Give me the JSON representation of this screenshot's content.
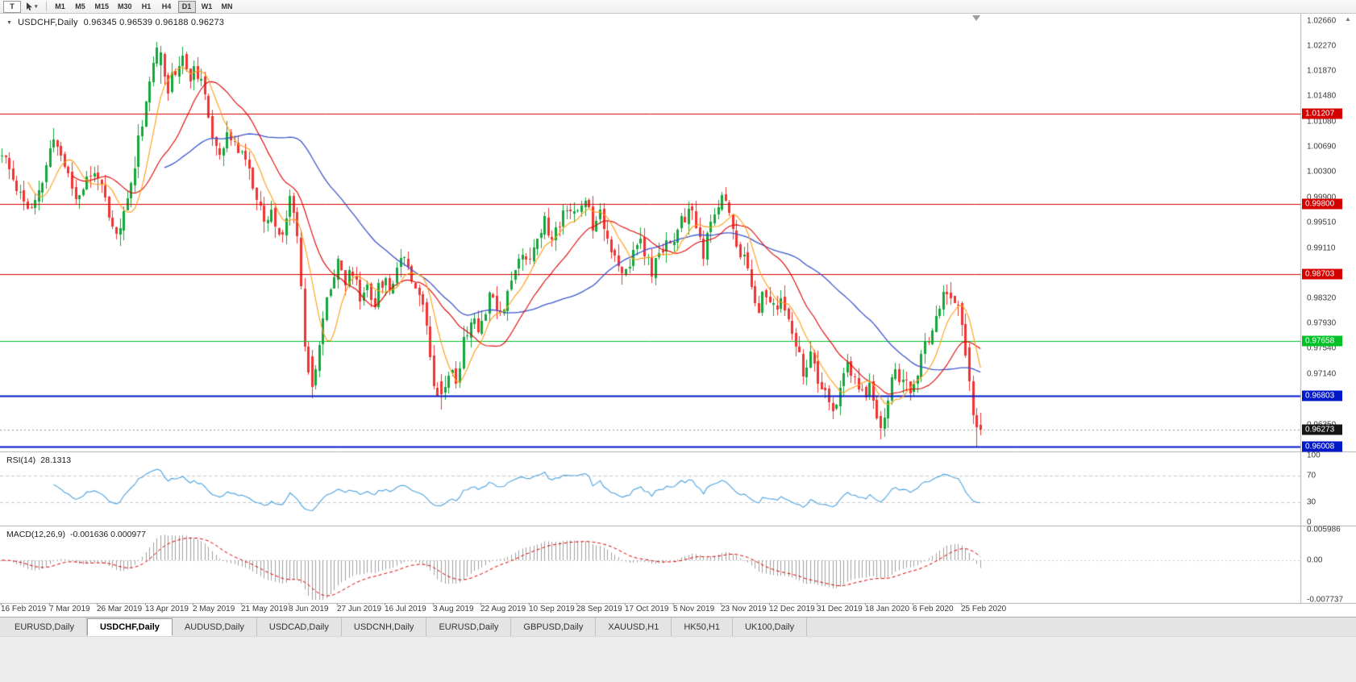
{
  "toolbar": {
    "tool_button_label": "T",
    "timeframes": [
      "M1",
      "M5",
      "M15",
      "M30",
      "H1",
      "H4",
      "D1",
      "W1",
      "MN"
    ],
    "active_timeframe": "D1"
  },
  "chart": {
    "title_symbol": "USDCHF,Daily",
    "title_ohlc": "0.96345 0.96539 0.96188 0.96273"
  },
  "chart_data": {
    "type": "candlestick",
    "symbol": "USDCHF",
    "timeframe": "Daily",
    "bars": 266,
    "current_ohlc": {
      "open": 0.96345,
      "high": 0.96539,
      "low": 0.96188,
      "close": 0.96273
    },
    "price_range": {
      "max": 1.0277,
      "min": 0.9593
    },
    "y_axis_labels": [
      "1.02660",
      "1.02270",
      "1.01870",
      "1.01480",
      "1.01080",
      "1.00690",
      "1.00300",
      "0.99900",
      "0.99510",
      "0.99110",
      "0.98720",
      "0.98320",
      "0.97930",
      "0.97540",
      "0.97140",
      "0.96750",
      "0.96350",
      "0.95960"
    ],
    "x_axis_labels": [
      "16 Feb 2019",
      "7 Mar 2019",
      "26 Mar 2019",
      "13 Apr 2019",
      "2 May 2019",
      "21 May 2019",
      "8 Jun 2019",
      "27 Jun 2019",
      "16 Jul 2019",
      "3 Aug 2019",
      "22 Aug 2019",
      "10 Sep 2019",
      "28 Sep 2019",
      "17 Oct 2019",
      "5 Nov 2019",
      "23 Nov 2019",
      "12 Dec 2019",
      "31 Dec 2019",
      "18 Jan 2020",
      "6 Feb 2020",
      "25 Feb 2020"
    ],
    "x_label_every_bars": 13,
    "levels": [
      {
        "label": "1.01207",
        "price": 1.01207,
        "color": "#d40000",
        "width": 1
      },
      {
        "label": "0.99800",
        "price": 0.998,
        "color": "#d40000",
        "width": 1
      },
      {
        "label": "0.98703",
        "price": 0.98703,
        "color": "#d40000",
        "width": 1
      },
      {
        "label": "0.97658",
        "price": 0.97658,
        "color": "#00c226",
        "width": 1
      },
      {
        "label": "0.96803",
        "price": 0.96803,
        "color": "#0018c8",
        "width": 2
      },
      {
        "label": "0.96008",
        "price": 0.96008,
        "color": "#0018c8",
        "width": 2
      }
    ],
    "bid": {
      "label": "0.96273",
      "price": 0.96273,
      "tag_color": "#161616"
    },
    "moving_averages": [
      {
        "period": 8,
        "color": "#ff9c12"
      },
      {
        "period": 20,
        "color": "#e00000"
      },
      {
        "period": 45,
        "color": "#3c55cc"
      }
    ],
    "rsi": {
      "name": "RSI(14)",
      "value": "28.1313",
      "color": "#4ea3e0",
      "scale_labels": [
        "100",
        "70",
        "30",
        "0"
      ],
      "dashed_levels": [
        70,
        30
      ]
    },
    "macd": {
      "name": "MACD(12,26,9)",
      "values": "-0.001636 0.000977",
      "hist_color": "#a0a0a0",
      "signal_color": "#e00000",
      "scale_labels": [
        "0.005986",
        "0.00",
        "-0.007737"
      ],
      "scale_max": 0.005986,
      "scale_min": -0.007737
    },
    "colors": {
      "candle_up": "#14a53c",
      "candle_down": "#ef3434",
      "bid_line": "#999999"
    },
    "price_anchors": [
      [
        0,
        1.0055
      ],
      [
        3,
        1.002
      ],
      [
        6,
        0.9985
      ],
      [
        8,
        0.9968
      ],
      [
        10,
        0.9992
      ],
      [
        12,
        1.004
      ],
      [
        14,
        1.0082
      ],
      [
        16,
        1.0058
      ],
      [
        18,
        1.0024
      ],
      [
        20,
        0.999
      ],
      [
        23,
        1.0016
      ],
      [
        26,
        1.003
      ],
      [
        29,
        0.9952
      ],
      [
        31,
        0.9928
      ],
      [
        33,
        0.9962
      ],
      [
        35,
        1.0012
      ],
      [
        37,
        1.0082
      ],
      [
        39,
        1.0142
      ],
      [
        41,
        1.0202
      ],
      [
        43,
        1.0222
      ],
      [
        45,
        1.0162
      ],
      [
        47,
        1.0192
      ],
      [
        49,
        1.0206
      ],
      [
        51,
        1.018
      ],
      [
        53,
        1.0186
      ],
      [
        55,
        1.014
      ],
      [
        57,
        1.0092
      ],
      [
        59,
        1.0062
      ],
      [
        61,
        1.009
      ],
      [
        63,
        1.0066
      ],
      [
        65,
        1.0072
      ],
      [
        67,
        1.003
      ],
      [
        69,
        0.9986
      ],
      [
        71,
        0.9946
      ],
      [
        73,
        0.9966
      ],
      [
        75,
        0.9926
      ],
      [
        77,
        0.9962
      ],
      [
        78,
        0.999
      ],
      [
        80,
        0.994
      ],
      [
        81,
        0.985
      ],
      [
        82,
        0.9762
      ],
      [
        84,
        0.9692
      ],
      [
        86,
        0.9756
      ],
      [
        88,
        0.983
      ],
      [
        90,
        0.9876
      ],
      [
        91,
        0.9898
      ],
      [
        93,
        0.9856
      ],
      [
        95,
        0.9876
      ],
      [
        97,
        0.9832
      ],
      [
        99,
        0.9856
      ],
      [
        101,
        0.9826
      ],
      [
        103,
        0.9862
      ],
      [
        105,
        0.9846
      ],
      [
        107,
        0.9886
      ],
      [
        109,
        0.9904
      ],
      [
        111,
        0.9868
      ],
      [
        113,
        0.9842
      ],
      [
        115,
        0.9792
      ],
      [
        117,
        0.9706
      ],
      [
        119,
        0.968
      ],
      [
        121,
        0.9722
      ],
      [
        123,
        0.9702
      ],
      [
        125,
        0.9762
      ],
      [
        127,
        0.98
      ],
      [
        129,
        0.9782
      ],
      [
        131,
        0.982
      ],
      [
        133,
        0.9846
      ],
      [
        135,
        0.9806
      ],
      [
        137,
        0.9846
      ],
      [
        139,
        0.9876
      ],
      [
        141,
        0.9902
      ],
      [
        143,
        0.9898
      ],
      [
        145,
        0.9932
      ],
      [
        147,
        0.9952
      ],
      [
        149,
        0.9922
      ],
      [
        151,
        0.9952
      ],
      [
        153,
        0.9982
      ],
      [
        155,
        0.996
      ],
      [
        157,
        0.9976
      ],
      [
        158,
        0.9992
      ],
      [
        160,
        0.995
      ],
      [
        162,
        0.9972
      ],
      [
        164,
        0.993
      ],
      [
        166,
        0.9892
      ],
      [
        168,
        0.9862
      ],
      [
        170,
        0.9886
      ],
      [
        172,
        0.9926
      ],
      [
        174,
        0.9902
      ],
      [
        176,
        0.9872
      ],
      [
        178,
        0.9898
      ],
      [
        180,
        0.9928
      ],
      [
        182,
        0.9918
      ],
      [
        184,
        0.9948
      ],
      [
        186,
        0.9972
      ],
      [
        188,
        0.9942
      ],
      [
        190,
        0.9902
      ],
      [
        192,
        0.9942
      ],
      [
        194,
        0.9982
      ],
      [
        195,
        1.0002
      ],
      [
        197,
        0.9962
      ],
      [
        199,
        0.9922
      ],
      [
        201,
        0.9892
      ],
      [
        203,
        0.9852
      ],
      [
        205,
        0.9822
      ],
      [
        207,
        0.9842
      ],
      [
        209,
        0.9812
      ],
      [
        211,
        0.9832
      ],
      [
        213,
        0.9792
      ],
      [
        215,
        0.9752
      ],
      [
        217,
        0.9722
      ],
      [
        219,
        0.9738
      ],
      [
        221,
        0.9702
      ],
      [
        223,
        0.9676
      ],
      [
        225,
        0.9654
      ],
      [
        227,
        0.9692
      ],
      [
        229,
        0.9722
      ],
      [
        231,
        0.9702
      ],
      [
        233,
        0.9682
      ],
      [
        235,
        0.9692
      ],
      [
        237,
        0.9652
      ],
      [
        238,
        0.9626
      ],
      [
        240,
        0.9678
      ],
      [
        242,
        0.9722
      ],
      [
        244,
        0.9702
      ],
      [
        246,
        0.9684
      ],
      [
        248,
        0.9712
      ],
      [
        250,
        0.9756
      ],
      [
        252,
        0.9792
      ],
      [
        254,
        0.9822
      ],
      [
        256,
        0.9842
      ],
      [
        258,
        0.9836
      ],
      [
        260,
        0.9788
      ],
      [
        261,
        0.9752
      ],
      [
        262,
        0.9702
      ],
      [
        263,
        0.9652
      ],
      [
        264,
        0.9625
      ],
      [
        265,
        0.96273
      ]
    ],
    "overrides": {
      "43": [
        1.0196,
        1.0227,
        1.0168,
        1.0216
      ],
      "84": [
        0.9742,
        0.9752,
        0.9676,
        0.9694
      ],
      "119": [
        0.9702,
        0.9714,
        0.9658,
        0.9682
      ],
      "225": [
        0.9668,
        0.9678,
        0.9644,
        0.9656
      ],
      "238": [
        0.9648,
        0.9656,
        0.9612,
        0.9629
      ],
      "262": [
        0.9756,
        0.9762,
        0.9688,
        0.9702
      ],
      "263": [
        0.9702,
        0.9712,
        0.9636,
        0.965
      ],
      "264": [
        0.965,
        0.9661,
        0.9601,
        0.9631
      ],
      "265": [
        0.96345,
        0.96539,
        0.96188,
        0.96273
      ]
    },
    "render": {
      "seed": 11,
      "close_noise": 0.0026,
      "open_noise": 0.0007,
      "wick_noise": 0.0018
    }
  },
  "tabs": {
    "active_index": 1,
    "items": [
      "EURUSD,Daily",
      "USDCHF,Daily",
      "AUDUSD,Daily",
      "USDCAD,Daily",
      "USDCNH,Daily",
      "EURUSD,Daily",
      "GBPUSD,Daily",
      "XAUUSD,H1",
      "HK50,H1",
      "UK100,Daily"
    ]
  }
}
